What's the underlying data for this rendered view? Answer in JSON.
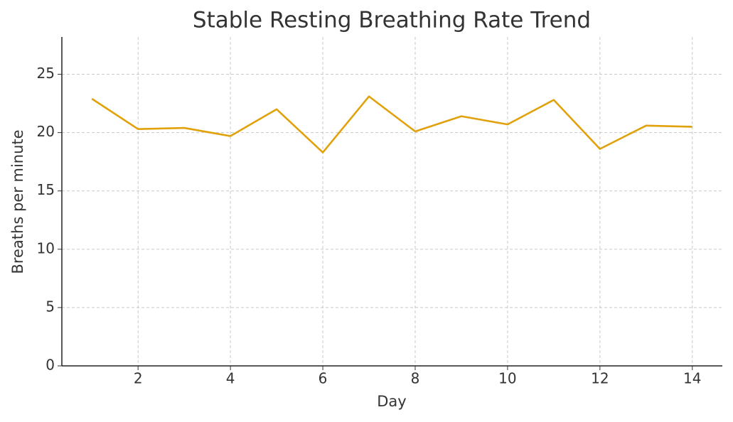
{
  "chart_data": {
    "type": "line",
    "title": "Stable Resting Breathing Rate Trend",
    "x_label": "Day",
    "y_label": "Breaths per minute",
    "x": [
      1,
      2,
      3,
      4,
      5,
      6,
      7,
      8,
      9,
      10,
      11,
      12,
      13,
      14
    ],
    "series": [
      {
        "color": "#e1a10a",
        "values": [
          22.9,
          20.3,
          20.4,
          19.7,
          22.0,
          18.3,
          23.1,
          20.1,
          21.4,
          20.7,
          22.8,
          18.6,
          20.6,
          20.5
        ]
      }
    ],
    "xlim": [
      0.35,
      14.65
    ],
    "ylim": [
      0,
      28.2
    ],
    "xticks": [
      2,
      4,
      6,
      8,
      10,
      12,
      14
    ],
    "yticks": [
      0,
      5,
      10,
      15,
      20,
      25
    ],
    "grid": true
  }
}
